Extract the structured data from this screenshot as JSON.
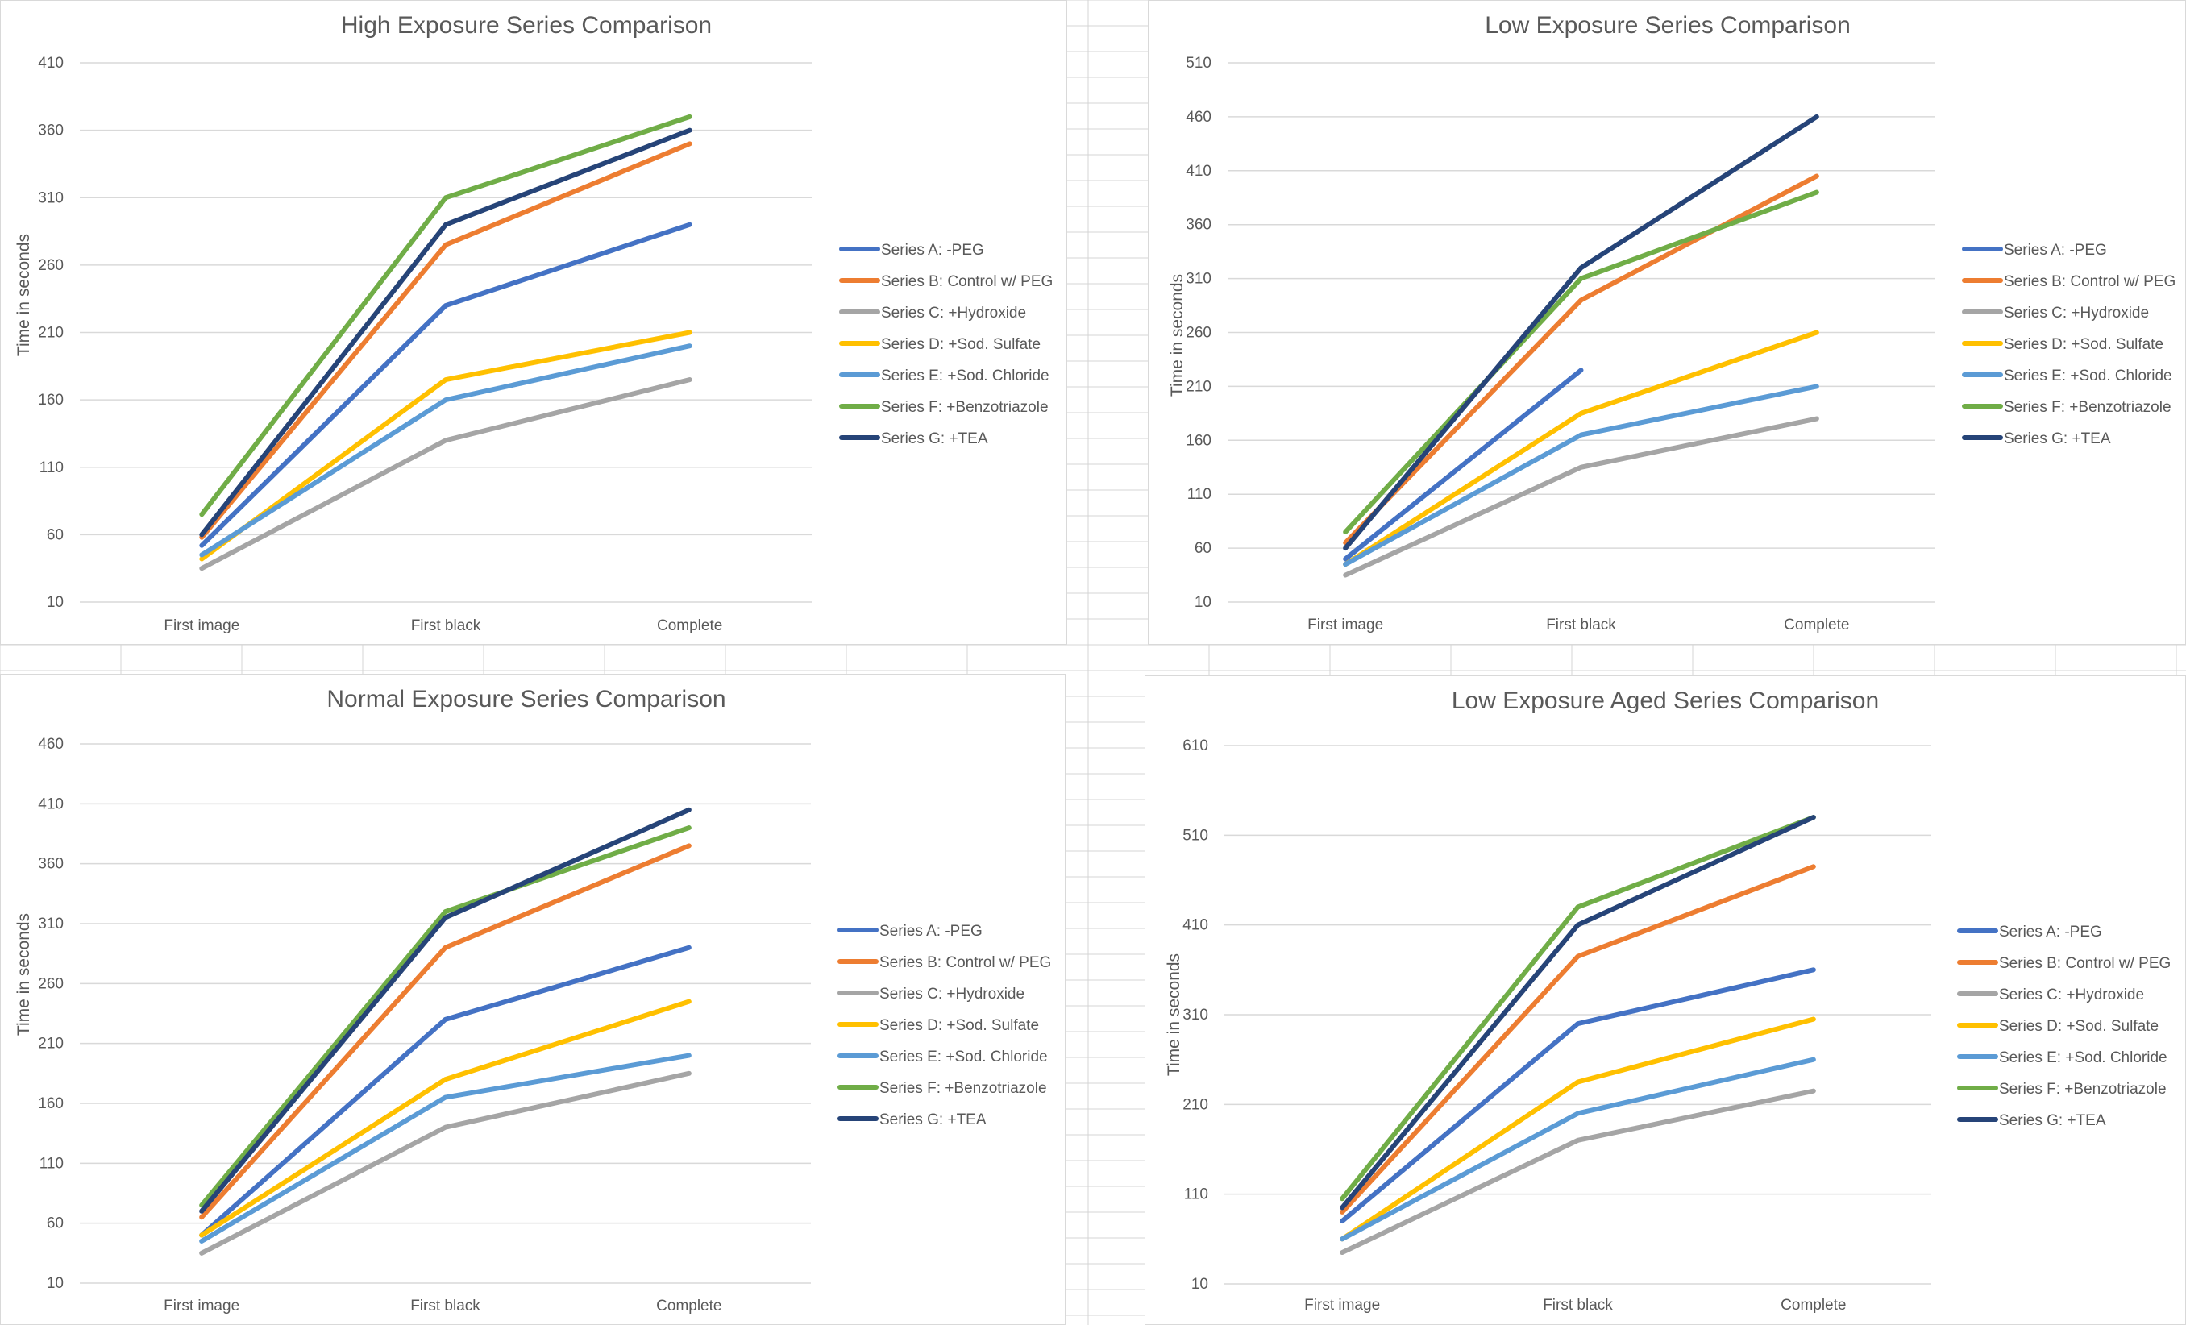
{
  "chart_data": [
    {
      "type": "line",
      "title": "High Exposure Series Comparison",
      "ylabel": "Time in seconds",
      "xlabel": "",
      "categories": [
        "First image",
        "First black",
        "Complete"
      ],
      "ylim": [
        10,
        410
      ],
      "yticks": [
        10,
        60,
        110,
        160,
        210,
        260,
        310,
        360,
        410
      ],
      "grid": true,
      "legend_position": "right",
      "series": [
        {
          "name": "Series A: -PEG",
          "color": "#4472C4",
          "values": [
            52,
            230,
            290
          ]
        },
        {
          "name": "Series B: Control w/ PEG",
          "color": "#ED7D31",
          "values": [
            58,
            275,
            350
          ]
        },
        {
          "name": "Series C: +Hydroxide",
          "color": "#A5A5A5",
          "values": [
            35,
            130,
            175
          ]
        },
        {
          "name": "Series D: +Sod. Sulfate",
          "color": "#FFC000",
          "values": [
            42,
            175,
            210
          ]
        },
        {
          "name": "Series E: +Sod. Chloride",
          "color": "#5B9BD5",
          "values": [
            45,
            160,
            200
          ]
        },
        {
          "name": "Series F: +Benzotriazole",
          "color": "#70AD47",
          "values": [
            75,
            310,
            370
          ]
        },
        {
          "name": "Series G: +TEA",
          "color": "#264478",
          "values": [
            60,
            290,
            360
          ]
        }
      ]
    },
    {
      "type": "line",
      "title": "Low Exposure Series Comparison",
      "ylabel": "Time in seconds",
      "xlabel": "",
      "categories": [
        "First image",
        "First black",
        "Complete"
      ],
      "ylim": [
        10,
        510
      ],
      "yticks": [
        10,
        60,
        110,
        160,
        210,
        260,
        310,
        360,
        410,
        460,
        510
      ],
      "grid": true,
      "legend_position": "right",
      "series": [
        {
          "name": "Series A: -PEG",
          "color": "#4472C4",
          "values": [
            50,
            225,
            null
          ]
        },
        {
          "name": "Series B: Control w/ PEG",
          "color": "#ED7D31",
          "values": [
            65,
            290,
            405
          ]
        },
        {
          "name": "Series C: +Hydroxide",
          "color": "#A5A5A5",
          "values": [
            35,
            135,
            180
          ]
        },
        {
          "name": "Series D: +Sod. Sulfate",
          "color": "#FFC000",
          "values": [
            45,
            185,
            260
          ]
        },
        {
          "name": "Series E: +Sod. Chloride",
          "color": "#5B9BD5",
          "values": [
            45,
            165,
            210
          ]
        },
        {
          "name": "Series F: +Benzotriazole",
          "color": "#70AD47",
          "values": [
            75,
            310,
            390
          ]
        },
        {
          "name": "Series G: +TEA",
          "color": "#264478",
          "values": [
            60,
            320,
            460
          ]
        }
      ]
    },
    {
      "type": "line",
      "title": "Normal Exposure Series Comparison",
      "ylabel": "Time in seconds",
      "xlabel": "",
      "categories": [
        "First image",
        "First black",
        "Complete"
      ],
      "ylim": [
        10,
        460
      ],
      "yticks": [
        10,
        60,
        110,
        160,
        210,
        260,
        310,
        360,
        410,
        460
      ],
      "grid": true,
      "legend_position": "right",
      "series": [
        {
          "name": "Series A: -PEG",
          "color": "#4472C4",
          "values": [
            50,
            230,
            290
          ]
        },
        {
          "name": "Series B: Control w/ PEG",
          "color": "#ED7D31",
          "values": [
            65,
            290,
            375
          ]
        },
        {
          "name": "Series C: +Hydroxide",
          "color": "#A5A5A5",
          "values": [
            35,
            140,
            185
          ]
        },
        {
          "name": "Series D: +Sod. Sulfate",
          "color": "#FFC000",
          "values": [
            50,
            180,
            245
          ]
        },
        {
          "name": "Series E: +Sod. Chloride",
          "color": "#5B9BD5",
          "values": [
            45,
            165,
            200
          ]
        },
        {
          "name": "Series F: +Benzotriazole",
          "color": "#70AD47",
          "values": [
            75,
            320,
            390
          ]
        },
        {
          "name": "Series G: +TEA",
          "color": "#264478",
          "values": [
            70,
            315,
            405
          ]
        }
      ]
    },
    {
      "type": "line",
      "title": "Low Exposure Aged Series Comparison",
      "ylabel": "Time in seconds",
      "xlabel": "",
      "categories": [
        "First image",
        "First black",
        "Complete"
      ],
      "ylim": [
        10,
        610
      ],
      "yticks": [
        10,
        110,
        210,
        310,
        410,
        510,
        610
      ],
      "grid": true,
      "legend_position": "right",
      "series": [
        {
          "name": "Series A: -PEG",
          "color": "#4472C4",
          "values": [
            80,
            300,
            360
          ]
        },
        {
          "name": "Series B: Control w/ PEG",
          "color": "#ED7D31",
          "values": [
            90,
            375,
            475
          ]
        },
        {
          "name": "Series C: +Hydroxide",
          "color": "#A5A5A5",
          "values": [
            45,
            170,
            225
          ]
        },
        {
          "name": "Series D: +Sod. Sulfate",
          "color": "#FFC000",
          "values": [
            60,
            235,
            305
          ]
        },
        {
          "name": "Series E: +Sod. Chloride",
          "color": "#5B9BD5",
          "values": [
            60,
            200,
            260
          ]
        },
        {
          "name": "Series F: +Benzotriazole",
          "color": "#70AD47",
          "values": [
            105,
            430,
            530
          ]
        },
        {
          "name": "Series G: +TEA",
          "color": "#264478",
          "values": [
            95,
            410,
            530
          ]
        }
      ]
    }
  ]
}
